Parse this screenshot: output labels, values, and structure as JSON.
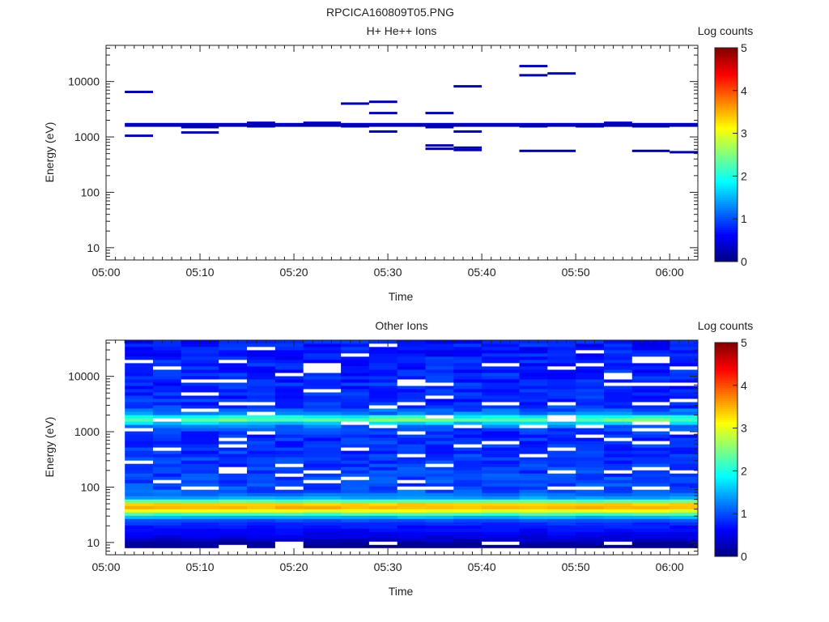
{
  "page_title": "RPCICA160809T05.PNG",
  "chart_data": [
    {
      "type": "heatmap",
      "title": "H+ He++ Ions",
      "xlabel": "Time",
      "ylabel": "Energy (eV)",
      "x_ticks": [
        "05:00",
        "05:10",
        "05:20",
        "05:30",
        "05:40",
        "05:50",
        "06:00"
      ],
      "x_range": [
        "05:00",
        "06:03"
      ],
      "y_scale": "log",
      "y_range": [
        6,
        45000
      ],
      "y_ticks": [
        10,
        100,
        1000,
        10000
      ],
      "y_tick_labels": [
        "10",
        "100",
        "1000",
        "10000"
      ],
      "colorbar": {
        "label": "Log counts",
        "range": [
          0,
          5
        ],
        "ticks": [
          "0",
          "1",
          "2",
          "3",
          "4",
          "5"
        ],
        "colormap": "jet"
      },
      "grid": false,
      "bins": [
        {
          "t0": "05:02",
          "t1": "05:05",
          "e": 6500,
          "v": 0.2
        },
        {
          "t0": "05:02",
          "t1": "05:05",
          "e": 1050,
          "v": 0.2
        },
        {
          "t0": "05:02",
          "t1": "06:03",
          "e": 1700,
          "v": 0.35
        },
        {
          "t0": "05:02",
          "t1": "06:03",
          "e": 1600,
          "v": 0.25
        },
        {
          "t0": "05:08",
          "t1": "05:12",
          "e": 1500,
          "v": 0.2
        },
        {
          "t0": "05:08",
          "t1": "05:12",
          "e": 1200,
          "v": 0.2
        },
        {
          "t0": "05:15",
          "t1": "05:18",
          "e": 1800,
          "v": 0.3
        },
        {
          "t0": "05:15",
          "t1": "05:18",
          "e": 1550,
          "v": 0.2
        },
        {
          "t0": "05:21",
          "t1": "05:25",
          "e": 1800,
          "v": 0.3
        },
        {
          "t0": "05:25",
          "t1": "05:28",
          "e": 4000,
          "v": 0.2
        },
        {
          "t0": "05:25",
          "t1": "05:28",
          "e": 1550,
          "v": 0.2
        },
        {
          "t0": "05:28",
          "t1": "05:31",
          "e": 4300,
          "v": 0.2
        },
        {
          "t0": "05:28",
          "t1": "05:31",
          "e": 2700,
          "v": 0.2
        },
        {
          "t0": "05:28",
          "t1": "05:31",
          "e": 1250,
          "v": 0.2
        },
        {
          "t0": "05:34",
          "t1": "05:37",
          "e": 2700,
          "v": 0.2
        },
        {
          "t0": "05:34",
          "t1": "05:37",
          "e": 1500,
          "v": 0.2
        },
        {
          "t0": "05:34",
          "t1": "05:37",
          "e": 700,
          "v": 0.2
        },
        {
          "t0": "05:34",
          "t1": "05:37",
          "e": 610,
          "v": 0.2
        },
        {
          "t0": "05:37",
          "t1": "05:40",
          "e": 8200,
          "v": 0.2
        },
        {
          "t0": "05:37",
          "t1": "05:40",
          "e": 1250,
          "v": 0.2
        },
        {
          "t0": "05:37",
          "t1": "05:40",
          "e": 640,
          "v": 0.25
        },
        {
          "t0": "05:37",
          "t1": "05:40",
          "e": 580,
          "v": 0.25
        },
        {
          "t0": "05:44",
          "t1": "05:47",
          "e": 19000,
          "v": 0.2
        },
        {
          "t0": "05:44",
          "t1": "05:47",
          "e": 13000,
          "v": 0.2
        },
        {
          "t0": "05:44",
          "t1": "05:47",
          "e": 1550,
          "v": 0.2
        },
        {
          "t0": "05:44",
          "t1": "05:50",
          "e": 560,
          "v": 0.2
        },
        {
          "t0": "05:47",
          "t1": "05:50",
          "e": 14000,
          "v": 0.2
        },
        {
          "t0": "05:50",
          "t1": "05:53",
          "e": 1550,
          "v": 0.2
        },
        {
          "t0": "05:53",
          "t1": "05:56",
          "e": 1800,
          "v": 0.3
        },
        {
          "t0": "05:56",
          "t1": "06:00",
          "e": 1550,
          "v": 0.2
        },
        {
          "t0": "05:56",
          "t1": "06:00",
          "e": 560,
          "v": 0.2
        },
        {
          "t0": "06:00",
          "t1": "06:03",
          "e": 530,
          "v": 0.2
        }
      ]
    },
    {
      "type": "heatmap",
      "title": "Other Ions",
      "xlabel": "Time",
      "ylabel": "Energy (eV)",
      "x_ticks": [
        "05:00",
        "05:10",
        "05:20",
        "05:30",
        "05:40",
        "05:50",
        "06:00"
      ],
      "x_range": [
        "05:00",
        "06:03"
      ],
      "y_scale": "log",
      "y_range": [
        6,
        45000
      ],
      "y_ticks": [
        10,
        100,
        1000,
        10000
      ],
      "y_tick_labels": [
        "10",
        "100",
        "1000",
        "10000"
      ],
      "colorbar": {
        "label": "Log counts",
        "range": [
          0,
          5
        ],
        "ticks": [
          "0",
          "1",
          "2",
          "3",
          "4",
          "5"
        ],
        "colormap": "jet"
      },
      "grid": false,
      "time_columns": [
        "05:02",
        "05:05",
        "05:08",
        "05:12",
        "05:15",
        "05:18",
        "05:21",
        "05:25",
        "05:28",
        "05:31",
        "05:34",
        "05:37",
        "05:40",
        "05:44",
        "05:47",
        "05:50",
        "05:53",
        "05:56",
        "06:00"
      ],
      "time_end": "06:03",
      "energy_profile": [
        {
          "e": 8,
          "v": 0
        },
        {
          "e": 11,
          "v": 0.3
        },
        {
          "e": 14,
          "v": 0.55
        },
        {
          "e": 20,
          "v": 0.75
        },
        {
          "e": 26,
          "v": 1.0
        },
        {
          "e": 32,
          "v": 2.0
        },
        {
          "e": 36,
          "v": 2.9
        },
        {
          "e": 42,
          "v": 3.4
        },
        {
          "e": 47,
          "v": 3.7
        },
        {
          "e": 52,
          "v": 3.1
        },
        {
          "e": 58,
          "v": 2.1
        },
        {
          "e": 66,
          "v": 1.3
        },
        {
          "e": 90,
          "v": 1.0
        },
        {
          "e": 300,
          "v": 0.9
        },
        {
          "e": 1000,
          "v": 0.85
        },
        {
          "e": 1300,
          "v": 1.2
        },
        {
          "e": 1480,
          "v": 1.8
        },
        {
          "e": 1650,
          "v": 2.4
        },
        {
          "e": 1850,
          "v": 2.1
        },
        {
          "e": 2100,
          "v": 1.3
        },
        {
          "e": 3000,
          "v": 0.85
        },
        {
          "e": 45000,
          "v": 0.75
        }
      ]
    }
  ]
}
